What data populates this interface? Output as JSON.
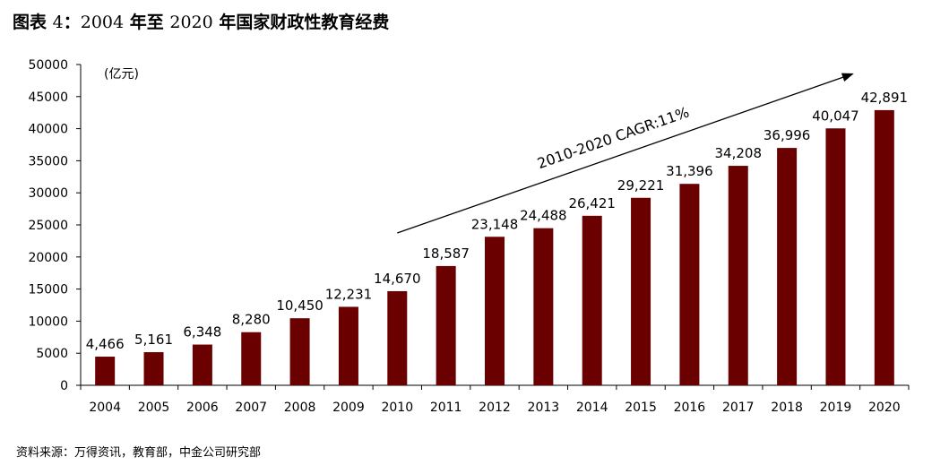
{
  "title": {
    "prefix": "图表",
    "number": "4",
    "colon": "：",
    "year_start": "2004",
    "connector": "年至",
    "year_end": "2020",
    "suffix": "年国家财政性教育经费"
  },
  "source": "资料来源：万得资讯，教育部，中金公司研究部",
  "colors": {
    "bar": "#6b0000",
    "axis": "#000000"
  },
  "chart_data": {
    "type": "bar",
    "categories": [
      "2004",
      "2005",
      "2006",
      "2007",
      "2008",
      "2009",
      "2010",
      "2011",
      "2012",
      "2013",
      "2014",
      "2015",
      "2016",
      "2017",
      "2018",
      "2019",
      "2020"
    ],
    "values": [
      4466,
      5161,
      6348,
      8280,
      10450,
      12231,
      14670,
      18587,
      23148,
      24488,
      26421,
      29221,
      31396,
      34208,
      36996,
      40047,
      42891
    ],
    "value_labels": [
      "4,466",
      "5,161",
      "6,348",
      "8,280",
      "10,450",
      "12,231",
      "14,670",
      "18,587",
      "23,148",
      "24,488",
      "26,421",
      "29,221",
      "31,396",
      "34,208",
      "36,996",
      "40,047",
      "42,891"
    ],
    "yticks": [
      0,
      5000,
      10000,
      15000,
      20000,
      25000,
      30000,
      35000,
      40000,
      45000,
      50000
    ],
    "ylim": [
      0,
      50000
    ],
    "unit_label": "(亿元)",
    "grid": false,
    "annotation": {
      "text": "2010-2020 CAGR:11%",
      "from_category": "2010",
      "to_category": "2020"
    }
  }
}
